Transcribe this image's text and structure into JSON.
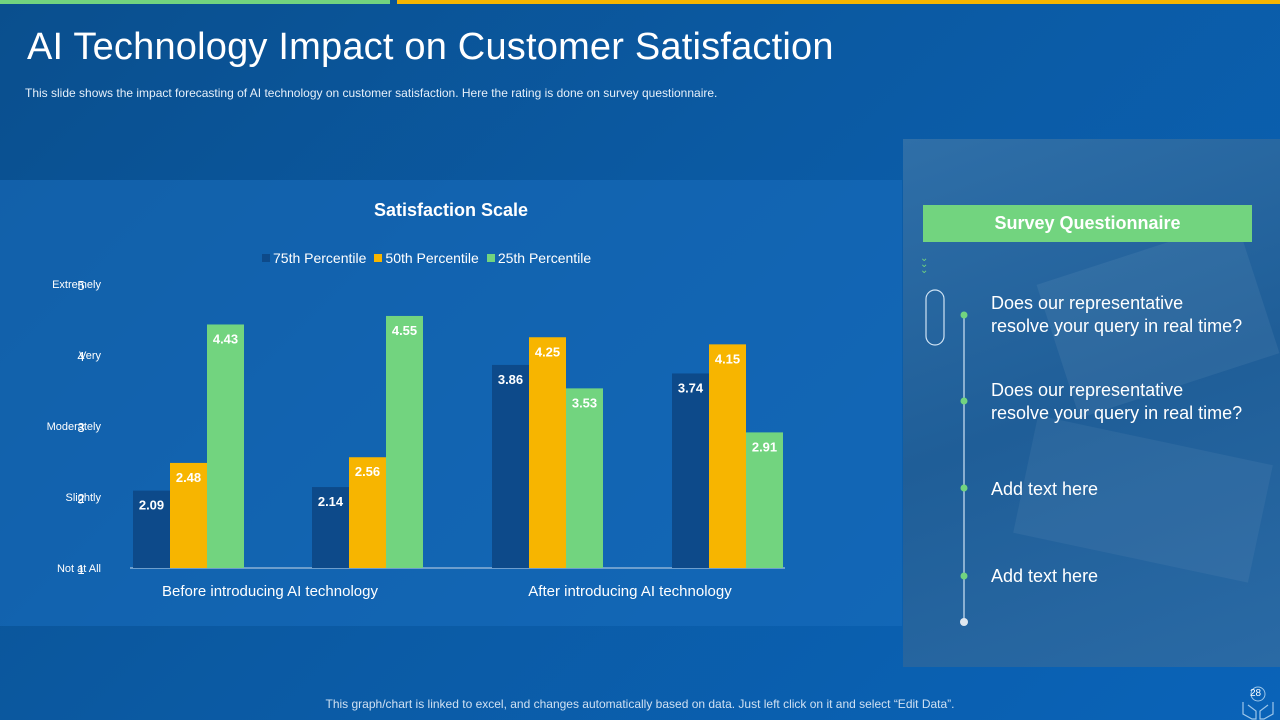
{
  "slide": {
    "title": "AI Technology Impact on Customer Satisfaction",
    "subtitle": "This slide shows the impact forecasting of AI technology on customer satisfaction. Here the rating is done on survey questionnaire.",
    "footer": "This graph/chart is linked to excel, and changes automatically based on data. Just left click on it and select “Edit Data”.",
    "page_number": "28",
    "colors": {
      "accent_green": "#72d47f",
      "accent_yellow": "#f7b500",
      "dark_blue": "#0d4a8a"
    }
  },
  "chart_data": {
    "type": "bar",
    "title": "Satisfaction Scale",
    "categories": [
      "Before introducing AI technology",
      "",
      "After introducing AI technology",
      ""
    ],
    "group_labels": [
      "Before introducing AI technology",
      "After introducing AI technology"
    ],
    "series": [
      {
        "name": "75th Percentile",
        "color": "#0d4a8a",
        "values": [
          2.09,
          2.14,
          3.86,
          3.74
        ]
      },
      {
        "name": "50th Percentile",
        "color": "#f7b500",
        "values": [
          2.48,
          2.56,
          4.25,
          4.15
        ]
      },
      {
        "name": "25th Percentile",
        "color": "#72d47f",
        "values": [
          4.43,
          4.55,
          3.53,
          2.91
        ]
      }
    ],
    "data_labels": [
      [
        "2.09",
        "2.14",
        "3.86",
        "3.74"
      ],
      [
        "2.48",
        "2.56",
        "4.25",
        "4.15"
      ],
      [
        "4.43",
        "4.55",
        "3.53",
        "2.91"
      ]
    ],
    "y_ticks": [
      {
        "value": 1,
        "number": "1",
        "label": "Not at All"
      },
      {
        "value": 2,
        "number": "2",
        "label": "Slightly"
      },
      {
        "value": 3,
        "number": "3",
        "label": "Moderately"
      },
      {
        "value": 4,
        "number": "4",
        "label": "Very"
      },
      {
        "value": 5,
        "number": "5",
        "label": "Extremely"
      }
    ],
    "ylim": [
      1,
      5
    ],
    "legend_position": "top",
    "grid": false
  },
  "survey": {
    "heading": "Survey Questionnaire",
    "items": [
      {
        "lines": [
          "Does our representative",
          "resolve your query in real time?"
        ]
      },
      {
        "lines": [
          "Does our representative",
          "resolve your query in real time?"
        ]
      },
      {
        "lines": [
          "Add text here"
        ]
      },
      {
        "lines": [
          "Add text here"
        ]
      }
    ]
  }
}
